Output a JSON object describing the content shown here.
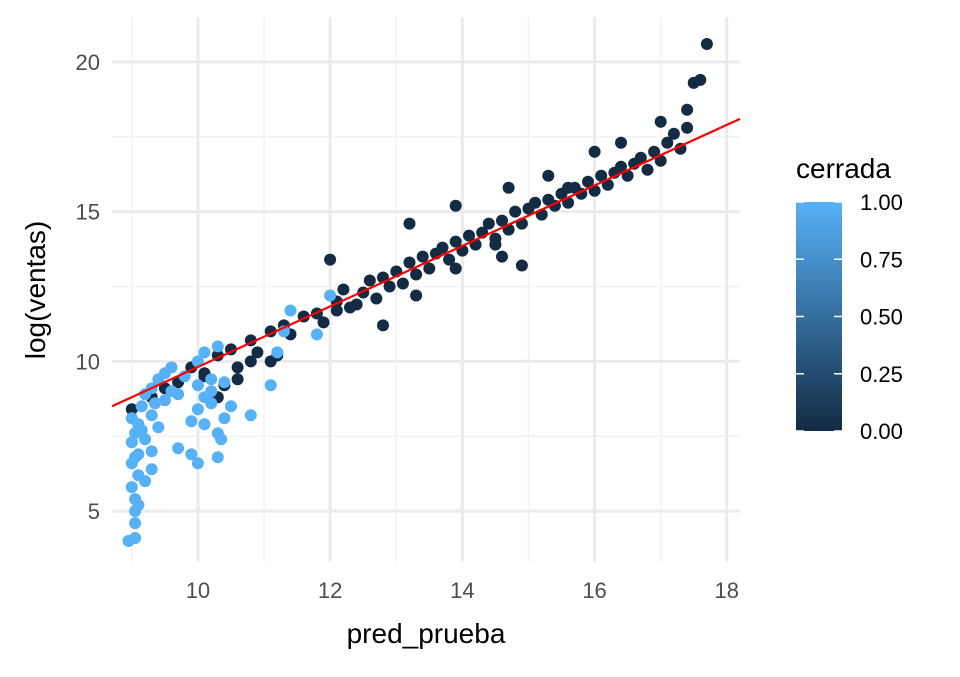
{
  "chart_data": {
    "type": "scatter",
    "title": "",
    "xlabel": "pred_prueba",
    "ylabel": "log(ventas)",
    "xlim": [
      8.7,
      18.2
    ],
    "ylim": [
      3.3,
      21.5
    ],
    "x_ticks": [
      10,
      12,
      14,
      16,
      18
    ],
    "y_ticks": [
      5,
      10,
      15,
      20
    ],
    "grid": true,
    "legend": {
      "title": "cerrada",
      "position": "right",
      "type": "colorbar",
      "ticks": [
        "1.00",
        "0.75",
        "0.50",
        "0.25",
        "0.00"
      ],
      "range": [
        0,
        1
      ],
      "low_color": "#132b43",
      "high_color": "#56b1f7"
    },
    "trend_line": {
      "color": "#ff0000",
      "x": [
        8.7,
        18.2
      ],
      "y": [
        8.5,
        18.1
      ]
    },
    "series": [
      {
        "cerrada": 0,
        "color": "#132b43",
        "points": [
          [
            9.0,
            8.4
          ],
          [
            9.3,
            8.8
          ],
          [
            9.5,
            9.1
          ],
          [
            9.7,
            9.3
          ],
          [
            9.9,
            9.8
          ],
          [
            10.1,
            9.5
          ],
          [
            10.3,
            10.2
          ],
          [
            10.5,
            10.4
          ],
          [
            10.6,
            9.8
          ],
          [
            10.8,
            10.7
          ],
          [
            10.9,
            10.3
          ],
          [
            11.1,
            11.0
          ],
          [
            11.3,
            11.2
          ],
          [
            11.4,
            10.9
          ],
          [
            11.6,
            11.5
          ],
          [
            11.8,
            11.6
          ],
          [
            11.9,
            11.3
          ],
          [
            12.1,
            12.0
          ],
          [
            12.2,
            12.4
          ],
          [
            12.3,
            11.8
          ],
          [
            12.5,
            12.3
          ],
          [
            12.6,
            12.7
          ],
          [
            12.7,
            12.1
          ],
          [
            12.8,
            12.8
          ],
          [
            12.9,
            12.5
          ],
          [
            13.0,
            13.0
          ],
          [
            13.1,
            12.6
          ],
          [
            13.2,
            13.3
          ],
          [
            13.3,
            12.9
          ],
          [
            13.4,
            13.5
          ],
          [
            13.5,
            13.1
          ],
          [
            13.6,
            13.6
          ],
          [
            13.7,
            13.8
          ],
          [
            13.8,
            13.4
          ],
          [
            13.9,
            14.0
          ],
          [
            14.0,
            13.7
          ],
          [
            14.1,
            14.2
          ],
          [
            14.2,
            13.9
          ],
          [
            14.3,
            14.3
          ],
          [
            14.4,
            14.6
          ],
          [
            14.5,
            14.1
          ],
          [
            14.6,
            14.7
          ],
          [
            14.7,
            14.4
          ],
          [
            14.8,
            15.0
          ],
          [
            14.9,
            14.6
          ],
          [
            15.0,
            15.1
          ],
          [
            15.1,
            15.3
          ],
          [
            15.2,
            14.9
          ],
          [
            15.3,
            15.4
          ],
          [
            15.4,
            15.2
          ],
          [
            15.5,
            15.6
          ],
          [
            15.6,
            15.3
          ],
          [
            15.7,
            15.8
          ],
          [
            15.8,
            15.6
          ],
          [
            15.9,
            16.0
          ],
          [
            16.0,
            15.7
          ],
          [
            16.1,
            16.2
          ],
          [
            16.2,
            15.9
          ],
          [
            16.3,
            16.3
          ],
          [
            16.4,
            16.5
          ],
          [
            16.5,
            16.2
          ],
          [
            16.6,
            16.6
          ],
          [
            16.7,
            16.8
          ],
          [
            16.8,
            16.4
          ],
          [
            16.9,
            17.0
          ],
          [
            17.0,
            16.7
          ],
          [
            17.1,
            17.3
          ],
          [
            17.2,
            17.6
          ],
          [
            17.3,
            17.1
          ],
          [
            17.4,
            17.8
          ],
          [
            17.0,
            18.0
          ],
          [
            16.4,
            17.3
          ],
          [
            17.4,
            18.4
          ],
          [
            17.5,
            19.3
          ],
          [
            17.6,
            19.4
          ],
          [
            17.7,
            20.6
          ],
          [
            16.0,
            17.0
          ],
          [
            15.3,
            16.2
          ],
          [
            14.7,
            15.8
          ],
          [
            13.9,
            15.2
          ],
          [
            13.2,
            14.6
          ],
          [
            12.0,
            13.4
          ],
          [
            12.1,
            11.7
          ],
          [
            12.8,
            11.2
          ],
          [
            13.3,
            12.2
          ],
          [
            14.6,
            13.5
          ],
          [
            14.9,
            13.2
          ],
          [
            10.1,
            9.6
          ],
          [
            10.4,
            9.2
          ],
          [
            10.3,
            8.8
          ],
          [
            11.2,
            10.2
          ],
          [
            11.1,
            10.0
          ],
          [
            10.6,
            9.4
          ],
          [
            10.8,
            10.0
          ],
          [
            13.9,
            13.1
          ],
          [
            14.5,
            13.9
          ],
          [
            15.6,
            15.8
          ],
          [
            12.4,
            11.9
          ]
        ]
      },
      {
        "cerrada": 1,
        "color": "#56b1f7",
        "points": [
          [
            8.95,
            4.0
          ],
          [
            9.05,
            4.1
          ],
          [
            9.05,
            4.6
          ],
          [
            9.05,
            5.0
          ],
          [
            9.05,
            5.4
          ],
          [
            9.0,
            5.8
          ],
          [
            9.1,
            6.2
          ],
          [
            9.0,
            6.6
          ],
          [
            9.1,
            6.9
          ],
          [
            9.0,
            7.3
          ],
          [
            9.05,
            7.6
          ],
          [
            9.1,
            7.9
          ],
          [
            9.0,
            8.1
          ],
          [
            9.15,
            8.5
          ],
          [
            9.2,
            8.9
          ],
          [
            9.3,
            9.1
          ],
          [
            9.4,
            9.4
          ],
          [
            9.5,
            9.6
          ],
          [
            9.6,
            9.8
          ],
          [
            9.3,
            8.2
          ],
          [
            9.4,
            7.8
          ],
          [
            9.3,
            6.4
          ],
          [
            9.2,
            6.0
          ],
          [
            9.7,
            7.1
          ],
          [
            9.9,
            6.9
          ],
          [
            10.0,
            6.6
          ],
          [
            10.3,
            6.8
          ],
          [
            9.9,
            8.0
          ],
          [
            10.0,
            8.4
          ],
          [
            10.1,
            7.9
          ],
          [
            10.2,
            8.6
          ],
          [
            10.3,
            7.6
          ],
          [
            10.4,
            8.1
          ],
          [
            10.5,
            8.5
          ],
          [
            10.8,
            8.2
          ],
          [
            10.0,
            9.2
          ],
          [
            10.2,
            9.4
          ],
          [
            10.0,
            10.0
          ],
          [
            10.1,
            10.3
          ],
          [
            10.3,
            10.5
          ],
          [
            10.4,
            9.3
          ],
          [
            11.1,
            9.2
          ],
          [
            11.2,
            10.3
          ],
          [
            11.3,
            11.0
          ],
          [
            11.4,
            11.7
          ],
          [
            11.8,
            10.9
          ],
          [
            12.0,
            12.2
          ],
          [
            9.6,
            9.0
          ],
          [
            9.8,
            9.5
          ],
          [
            9.5,
            8.7
          ],
          [
            9.7,
            8.9
          ],
          [
            10.1,
            8.8
          ],
          [
            10.2,
            9.0
          ],
          [
            9.2,
            7.4
          ],
          [
            9.3,
            7.0
          ],
          [
            9.1,
            5.2
          ],
          [
            9.05,
            6.8
          ],
          [
            9.15,
            7.7
          ],
          [
            9.35,
            8.6
          ],
          [
            10.35,
            7.4
          ]
        ]
      }
    ]
  }
}
